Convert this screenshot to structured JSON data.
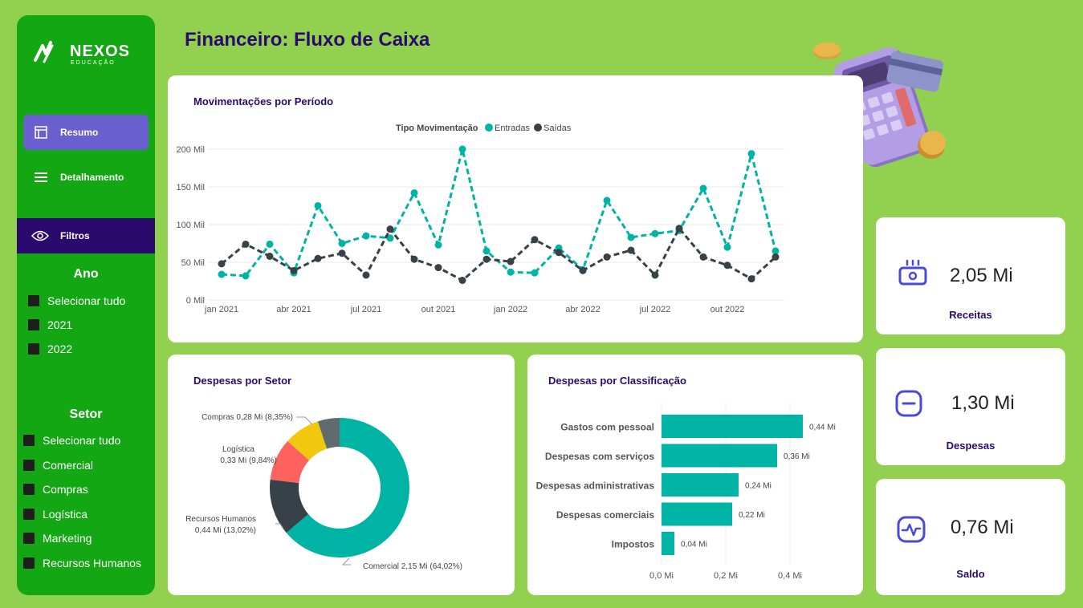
{
  "brand": {
    "name": "NEXOS",
    "sub": "EDUCAÇÃO"
  },
  "title": "Financeiro: Fluxo de Caixa",
  "nav": [
    {
      "label": "Resumo",
      "icon": "layout-icon",
      "active": true
    },
    {
      "label": "Detalhamento",
      "icon": "list-icon",
      "active": false
    }
  ],
  "filters": {
    "label": "Filtros",
    "ano": {
      "title": "Ano",
      "items": [
        "Selecionar tudo",
        "2021",
        "2022"
      ]
    },
    "setor": {
      "title": "Setor",
      "items": [
        "Selecionar tudo",
        "Comercial",
        "Compras",
        "Logística",
        "Marketing",
        "Recursos Humanos"
      ]
    }
  },
  "kpis": [
    {
      "value": "2,05 Mi",
      "label": "Receitas",
      "icon": "money-icon"
    },
    {
      "value": "1,30 Mi",
      "label": "Despesas",
      "icon": "minus-icon"
    },
    {
      "value": "0,76 Mi",
      "label": "Saldo",
      "icon": "pulse-icon"
    }
  ],
  "colors": {
    "teal": "#00b4a5",
    "dark": "#374148",
    "purple": "#2b0a6e",
    "red": "#fd625e",
    "yellow": "#f2c80f",
    "grey": "#5f6b6d"
  },
  "chart_data": [
    {
      "type": "line",
      "title": "Movimentações por Período",
      "legend_title": "Tipo Movimentação",
      "x": [
        "jan 2021",
        "fev 2021",
        "mar 2021",
        "abr 2021",
        "mai 2021",
        "jun 2021",
        "jul 2021",
        "ago 2021",
        "set 2021",
        "out 2021",
        "nov 2021",
        "dez 2021",
        "jan 2022",
        "fev 2022",
        "mar 2022",
        "abr 2022",
        "mai 2022",
        "jun 2022",
        "jul 2022",
        "ago 2022",
        "set 2022",
        "out 2022",
        "nov 2022",
        "dez 2022"
      ],
      "x_ticks": [
        "jan 2021",
        "abr 2021",
        "jul 2021",
        "out 2021",
        "jan 2022",
        "abr 2022",
        "jul 2022",
        "out 2022"
      ],
      "y_ticks": [
        "0 Mil",
        "50 Mil",
        "100 Mil",
        "150 Mil",
        "200 Mil"
      ],
      "ylim": [
        0,
        200
      ],
      "series": [
        {
          "name": "Entradas",
          "values": [
            34,
            32,
            74,
            36,
            125,
            75,
            85,
            82,
            142,
            73,
            200,
            65,
            37,
            36,
            69,
            40,
            132,
            83,
            88,
            92,
            148,
            70,
            194,
            65
          ]
        },
        {
          "name": "Saídas",
          "values": [
            48,
            74,
            58,
            39,
            55,
            62,
            33,
            94,
            54,
            43,
            26,
            54,
            51,
            80,
            63,
            39,
            57,
            66,
            33,
            95,
            57,
            46,
            28,
            57
          ]
        }
      ]
    },
    {
      "type": "pie",
      "title": "Despesas por Setor",
      "slices": [
        {
          "name": "Comercial",
          "value": 2.15,
          "label": "Comercial 2,15 Mi (64,02%)"
        },
        {
          "name": "Recursos Humanos",
          "value": 0.44,
          "label": "0,44 Mi (13,02%)",
          "label_head": "Recursos Humanos"
        },
        {
          "name": "Logística",
          "value": 0.33,
          "label": "0,33 Mi (9,84%)",
          "label_head": "Logística"
        },
        {
          "name": "Compras",
          "value": 0.28,
          "label": "Compras 0,28 Mi (8,35%)"
        },
        {
          "name": "Marketing",
          "value": 0.17
        }
      ]
    },
    {
      "type": "bar",
      "orientation": "horizontal",
      "title": "Despesas por Classificação",
      "categories": [
        "Gastos com pessoal",
        "Despesas com serviços",
        "Despesas administrativas",
        "Despesas comerciais",
        "Impostos"
      ],
      "values": [
        0.44,
        0.36,
        0.24,
        0.22,
        0.04
      ],
      "value_labels": [
        "0,44 Mi",
        "0,36 Mi",
        "0,24 Mi",
        "0,22 Mi",
        "0,04 Mi"
      ],
      "x_ticks": [
        "0,0 Mi",
        "0,2 Mi",
        "0,4 Mi"
      ],
      "xlim": [
        0,
        0.46
      ]
    }
  ]
}
